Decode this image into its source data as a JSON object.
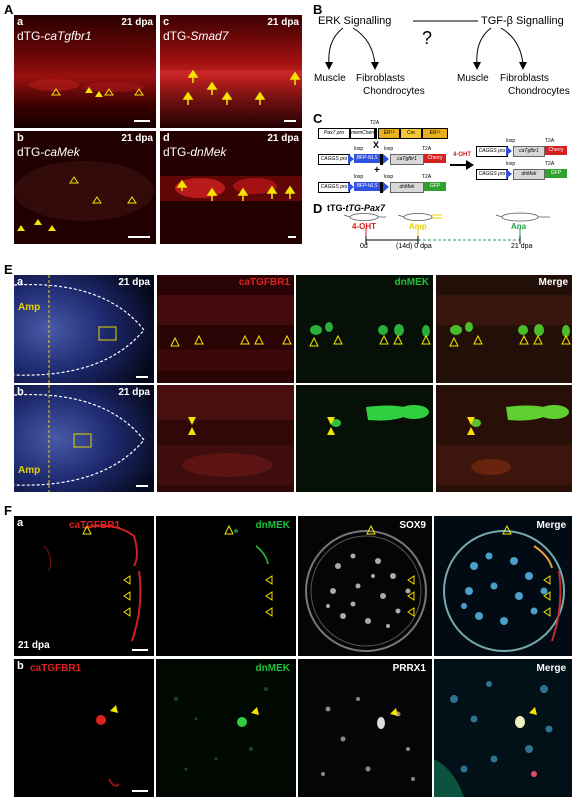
{
  "panel_A": {
    "letter": "A",
    "subpanels": [
      {
        "id": "a",
        "title_prefix": "dTG-",
        "title_gene": "caTgfbr1",
        "time": "21 dpa"
      },
      {
        "id": "b",
        "title_prefix": "dTG-",
        "title_gene": "caMek",
        "time": "21 dpa"
      },
      {
        "id": "c",
        "title_prefix": "dTG-",
        "title_gene": "Smad7",
        "time": "21 dpa"
      },
      {
        "id": "d",
        "title_prefix": "dTG-",
        "title_gene": "dnMek",
        "time": "21 dpa"
      }
    ]
  },
  "panel_B": {
    "letter": "B",
    "erk": "ERK Signalling",
    "tgfb": "TGF-β Signalling",
    "question": "?",
    "muscle": "Muscle",
    "fibroblasts": "Fibroblasts",
    "chondrocytes": "Chondrocytes"
  },
  "panel_C": {
    "letter": "C",
    "pax7_pre": "Pax7 pro",
    "memcherry": "memCherry",
    "ert2_a": "ERᵀ²",
    "cre": "Cre",
    "ert2_b": "ERᵀ²",
    "t2a": "T2A",
    "x": "X",
    "plus": "+",
    "loxp": "loxp",
    "cags": "CAGGS pro",
    "bfp": "BFP-NLS",
    "catgfbr1": "caTgfbr1",
    "cherry": "Cherry",
    "dnmek": "dnMek",
    "gfp": "GFP",
    "ohts": "4-OHT"
  },
  "panel_D": {
    "letter": "D",
    "title": "tTG-Pax7",
    "ohts": "4-OHT",
    "amp": "Amp",
    "ana": "Ana",
    "t0": "0d",
    "t1": "(14d) 0 dpa",
    "t2": "21 dpa"
  },
  "panel_E": {
    "letter": "E",
    "rows": [
      {
        "id": "a",
        "time": "21 dpa",
        "amp": "Amp"
      },
      {
        "id": "b",
        "time": "21 dpa",
        "amp": "Amp"
      }
    ],
    "col_red": "caTGFBR1",
    "col_green": "dnMEK",
    "col_merge": "Merge"
  },
  "panel_F": {
    "letter": "F",
    "rows": [
      {
        "id": "a",
        "red": "caTGFBR1",
        "green": "dnMEK",
        "gray": "SOX9",
        "merge": "Merge",
        "time": "21 dpa"
      },
      {
        "id": "b",
        "red": "caTGFBR1",
        "green": "dnMEK",
        "gray": "PRRX1",
        "merge": "Merge"
      }
    ]
  },
  "colors": {
    "red_label": "#e02020",
    "green_label": "#20c040",
    "arrow_yellow": "#f5e400",
    "amp_yellow": "#e6d200",
    "cherry": "#d42020",
    "bfp": "#3050e0",
    "gfp": "#30a030",
    "cre": "#e8b020"
  }
}
